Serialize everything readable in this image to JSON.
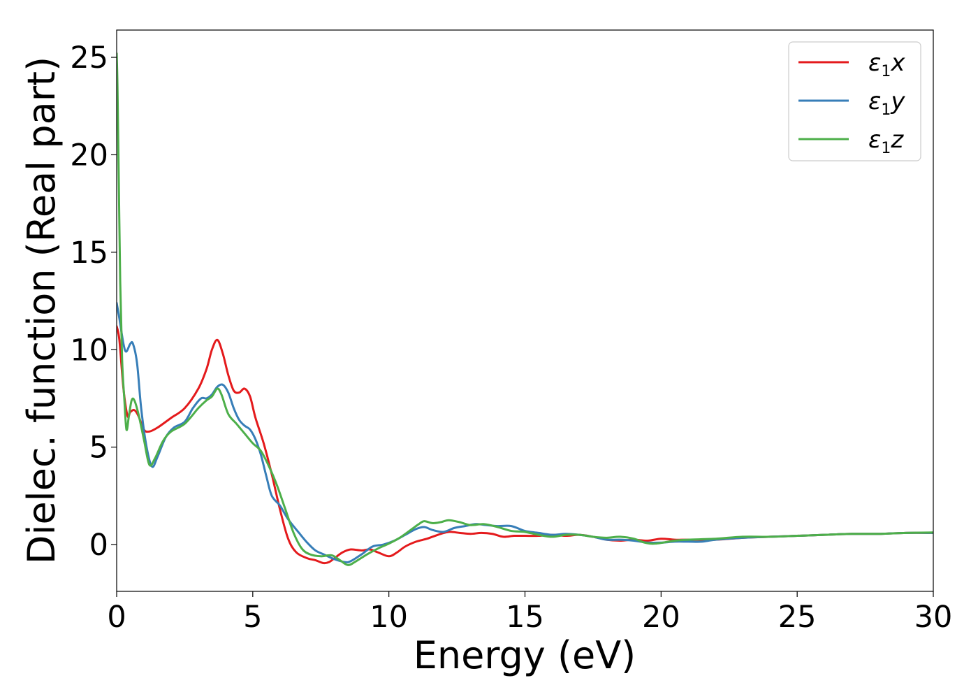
{
  "chart_data": {
    "type": "line",
    "xlabel": "Energy (eV)",
    "ylabel": "Dielec. function (Real part)",
    "xlim": [
      0,
      30
    ],
    "ylim": [
      -2.4,
      26.4
    ],
    "xticks": [
      0,
      5,
      10,
      15,
      20,
      25,
      30
    ],
    "yticks": [
      0,
      5,
      10,
      15,
      20,
      25
    ],
    "grid": false,
    "legend_position": "top-right",
    "colors": {
      "x": "#e41a1c",
      "y": "#377eb8",
      "z": "#4daf4a"
    },
    "series": [
      {
        "key": "x",
        "name": "ε1x",
        "name_base": "ε",
        "name_sub": "1",
        "name_var": "x",
        "color": "#e41a1c",
        "points": [
          [
            0,
            11.2
          ],
          [
            0.1,
            10.5
          ],
          [
            0.25,
            8.0
          ],
          [
            0.4,
            6.6
          ],
          [
            0.5,
            6.8
          ],
          [
            0.65,
            6.9
          ],
          [
            0.8,
            6.6
          ],
          [
            1.0,
            5.9
          ],
          [
            1.2,
            5.8
          ],
          [
            1.5,
            6.0
          ],
          [
            2.0,
            6.5
          ],
          [
            2.5,
            7.0
          ],
          [
            3.0,
            8.0
          ],
          [
            3.3,
            9.0
          ],
          [
            3.5,
            10.0
          ],
          [
            3.7,
            10.5
          ],
          [
            3.9,
            9.8
          ],
          [
            4.1,
            8.7
          ],
          [
            4.3,
            7.9
          ],
          [
            4.5,
            7.8
          ],
          [
            4.7,
            8.0
          ],
          [
            4.9,
            7.6
          ],
          [
            5.1,
            6.5
          ],
          [
            5.4,
            5.2
          ],
          [
            5.7,
            3.6
          ],
          [
            6.0,
            1.8
          ],
          [
            6.3,
            0.3
          ],
          [
            6.6,
            -0.4
          ],
          [
            7.0,
            -0.7
          ],
          [
            7.3,
            -0.8
          ],
          [
            7.6,
            -0.95
          ],
          [
            7.8,
            -0.9
          ],
          [
            8.0,
            -0.7
          ],
          [
            8.3,
            -0.4
          ],
          [
            8.6,
            -0.25
          ],
          [
            9.0,
            -0.3
          ],
          [
            9.3,
            -0.25
          ],
          [
            9.6,
            -0.4
          ],
          [
            10.0,
            -0.6
          ],
          [
            10.3,
            -0.4
          ],
          [
            10.6,
            -0.1
          ],
          [
            11.0,
            0.15
          ],
          [
            11.4,
            0.3
          ],
          [
            11.8,
            0.5
          ],
          [
            12.2,
            0.65
          ],
          [
            12.6,
            0.6
          ],
          [
            13.0,
            0.55
          ],
          [
            13.4,
            0.6
          ],
          [
            13.8,
            0.55
          ],
          [
            14.2,
            0.4
          ],
          [
            14.6,
            0.45
          ],
          [
            15.0,
            0.45
          ],
          [
            15.5,
            0.45
          ],
          [
            16.0,
            0.5
          ],
          [
            16.5,
            0.45
          ],
          [
            17.0,
            0.5
          ],
          [
            17.5,
            0.4
          ],
          [
            18.0,
            0.25
          ],
          [
            18.5,
            0.2
          ],
          [
            19.0,
            0.25
          ],
          [
            19.5,
            0.2
          ],
          [
            20.0,
            0.3
          ],
          [
            20.5,
            0.25
          ],
          [
            21.0,
            0.25
          ],
          [
            22.0,
            0.25
          ],
          [
            23.0,
            0.35
          ],
          [
            24.0,
            0.4
          ],
          [
            25.0,
            0.45
          ],
          [
            26.0,
            0.5
          ],
          [
            27.0,
            0.55
          ],
          [
            28.0,
            0.55
          ],
          [
            29.0,
            0.6
          ],
          [
            30.0,
            0.6
          ]
        ]
      },
      {
        "key": "y",
        "name": "ε1y",
        "name_base": "ε",
        "name_sub": "1",
        "name_var": "y",
        "color": "#377eb8",
        "points": [
          [
            0,
            12.4
          ],
          [
            0.1,
            11.6
          ],
          [
            0.25,
            10.3
          ],
          [
            0.35,
            9.9
          ],
          [
            0.5,
            10.3
          ],
          [
            0.6,
            10.3
          ],
          [
            0.75,
            9.3
          ],
          [
            0.9,
            7.0
          ],
          [
            1.1,
            5.0
          ],
          [
            1.3,
            4.0
          ],
          [
            1.5,
            4.5
          ],
          [
            1.8,
            5.5
          ],
          [
            2.1,
            6.0
          ],
          [
            2.5,
            6.3
          ],
          [
            2.8,
            7.0
          ],
          [
            3.1,
            7.5
          ],
          [
            3.3,
            7.5
          ],
          [
            3.5,
            7.7
          ],
          [
            3.7,
            8.1
          ],
          [
            3.9,
            8.2
          ],
          [
            4.1,
            7.8
          ],
          [
            4.3,
            7.0
          ],
          [
            4.5,
            6.4
          ],
          [
            4.7,
            6.1
          ],
          [
            4.9,
            5.9
          ],
          [
            5.1,
            5.4
          ],
          [
            5.3,
            4.6
          ],
          [
            5.5,
            3.5
          ],
          [
            5.7,
            2.5
          ],
          [
            6.0,
            2.0
          ],
          [
            6.3,
            1.3
          ],
          [
            6.7,
            0.6
          ],
          [
            7.0,
            0.1
          ],
          [
            7.3,
            -0.3
          ],
          [
            7.6,
            -0.5
          ],
          [
            8.0,
            -0.75
          ],
          [
            8.4,
            -0.9
          ],
          [
            8.6,
            -0.85
          ],
          [
            9.0,
            -0.5
          ],
          [
            9.4,
            -0.1
          ],
          [
            9.8,
            0.0
          ],
          [
            10.2,
            0.2
          ],
          [
            10.6,
            0.5
          ],
          [
            11.0,
            0.8
          ],
          [
            11.3,
            0.9
          ],
          [
            11.6,
            0.75
          ],
          [
            12.0,
            0.65
          ],
          [
            12.4,
            0.85
          ],
          [
            12.8,
            0.95
          ],
          [
            13.2,
            1.05
          ],
          [
            13.6,
            1.0
          ],
          [
            14.0,
            0.95
          ],
          [
            14.5,
            0.95
          ],
          [
            15.0,
            0.7
          ],
          [
            15.5,
            0.6
          ],
          [
            16.0,
            0.5
          ],
          [
            16.5,
            0.55
          ],
          [
            17.0,
            0.5
          ],
          [
            17.5,
            0.4
          ],
          [
            18.0,
            0.25
          ],
          [
            18.5,
            0.25
          ],
          [
            19.0,
            0.2
          ],
          [
            19.5,
            0.1
          ],
          [
            20.0,
            0.1
          ],
          [
            20.5,
            0.15
          ],
          [
            21.0,
            0.15
          ],
          [
            21.5,
            0.15
          ],
          [
            22.0,
            0.25
          ],
          [
            23.0,
            0.35
          ],
          [
            24.0,
            0.4
          ],
          [
            25.0,
            0.45
          ],
          [
            26.0,
            0.5
          ],
          [
            27.0,
            0.55
          ],
          [
            28.0,
            0.55
          ],
          [
            29.0,
            0.6
          ],
          [
            30.0,
            0.6
          ]
        ]
      },
      {
        "key": "z",
        "name": "ε1z",
        "name_base": "ε",
        "name_sub": "1",
        "name_var": "z",
        "color": "#4daf4a",
        "points": [
          [
            0,
            25.2
          ],
          [
            0.03,
            23.5
          ],
          [
            0.08,
            18.5
          ],
          [
            0.13,
            13.5
          ],
          [
            0.2,
            9.5
          ],
          [
            0.28,
            7.5
          ],
          [
            0.36,
            5.9
          ],
          [
            0.45,
            6.6
          ],
          [
            0.55,
            7.4
          ],
          [
            0.65,
            7.4
          ],
          [
            0.8,
            6.7
          ],
          [
            1.0,
            5.4
          ],
          [
            1.2,
            4.1
          ],
          [
            1.4,
            4.4
          ],
          [
            1.7,
            5.3
          ],
          [
            2.0,
            5.8
          ],
          [
            2.5,
            6.2
          ],
          [
            3.0,
            7.0
          ],
          [
            3.3,
            7.4
          ],
          [
            3.5,
            7.6
          ],
          [
            3.7,
            8.0
          ],
          [
            3.85,
            7.7
          ],
          [
            4.1,
            6.7
          ],
          [
            4.4,
            6.2
          ],
          [
            4.7,
            5.7
          ],
          [
            5.0,
            5.2
          ],
          [
            5.3,
            4.8
          ],
          [
            5.6,
            4.0
          ],
          [
            5.9,
            3.0
          ],
          [
            6.2,
            1.8
          ],
          [
            6.5,
            0.6
          ],
          [
            6.8,
            -0.2
          ],
          [
            7.1,
            -0.5
          ],
          [
            7.5,
            -0.6
          ],
          [
            7.9,
            -0.55
          ],
          [
            8.2,
            -0.8
          ],
          [
            8.5,
            -1.05
          ],
          [
            8.8,
            -0.85
          ],
          [
            9.2,
            -0.5
          ],
          [
            9.6,
            -0.2
          ],
          [
            10.0,
            0.05
          ],
          [
            10.4,
            0.35
          ],
          [
            10.8,
            0.75
          ],
          [
            11.1,
            1.05
          ],
          [
            11.3,
            1.2
          ],
          [
            11.6,
            1.1
          ],
          [
            11.9,
            1.15
          ],
          [
            12.2,
            1.25
          ],
          [
            12.6,
            1.15
          ],
          [
            13.0,
            1.0
          ],
          [
            13.5,
            1.05
          ],
          [
            14.0,
            0.9
          ],
          [
            14.5,
            0.7
          ],
          [
            15.0,
            0.65
          ],
          [
            15.5,
            0.5
          ],
          [
            16.0,
            0.4
          ],
          [
            16.5,
            0.5
          ],
          [
            17.0,
            0.5
          ],
          [
            17.5,
            0.4
          ],
          [
            18.0,
            0.35
          ],
          [
            18.5,
            0.4
          ],
          [
            19.0,
            0.3
          ],
          [
            19.4,
            0.1
          ],
          [
            19.8,
            0.05
          ],
          [
            20.5,
            0.2
          ],
          [
            21.0,
            0.25
          ],
          [
            22.0,
            0.3
          ],
          [
            23.0,
            0.4
          ],
          [
            24.0,
            0.4
          ],
          [
            25.0,
            0.45
          ],
          [
            26.0,
            0.5
          ],
          [
            27.0,
            0.55
          ],
          [
            28.0,
            0.55
          ],
          [
            29.0,
            0.6
          ],
          [
            30.0,
            0.62
          ]
        ]
      }
    ]
  }
}
